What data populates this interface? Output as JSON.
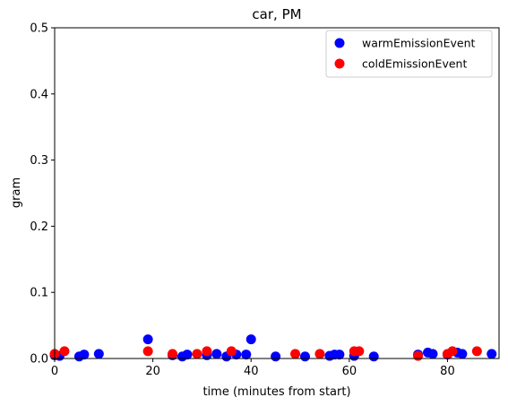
{
  "chart_data": {
    "type": "scatter",
    "title": "car, PM",
    "xlabel": "time (minutes from start)",
    "ylabel": "gram",
    "xlim": [
      0,
      90.5
    ],
    "ylim": [
      0,
      0.5
    ],
    "x_ticks": [
      0,
      20,
      40,
      60,
      80
    ],
    "y_ticks": [
      0.0,
      0.1,
      0.2,
      0.3,
      0.4,
      0.5
    ],
    "x_tick_labels": [
      "0",
      "20",
      "40",
      "60",
      "80"
    ],
    "y_tick_labels": [
      "0.0",
      "0.1",
      "0.2",
      "0.3",
      "0.4",
      "0.5"
    ],
    "grid": false,
    "legend_position": "top-right",
    "series": [
      {
        "name": "warmEmissionEvent",
        "color": "#0000ff",
        "points": [
          [
            0,
            0.005
          ],
          [
            1,
            0.004
          ],
          [
            5,
            0.003
          ],
          [
            6,
            0.006
          ],
          [
            9,
            0.007
          ],
          [
            19,
            0.029
          ],
          [
            24,
            0.005
          ],
          [
            26,
            0.003
          ],
          [
            27,
            0.006
          ],
          [
            31,
            0.005
          ],
          [
            33,
            0.007
          ],
          [
            35,
            0.003
          ],
          [
            37,
            0.006
          ],
          [
            39,
            0.006
          ],
          [
            40,
            0.029
          ],
          [
            45,
            0.003
          ],
          [
            51,
            0.003
          ],
          [
            56,
            0.004
          ],
          [
            57,
            0.006
          ],
          [
            58,
            0.006
          ],
          [
            61,
            0.004
          ],
          [
            65,
            0.003
          ],
          [
            74,
            0.006
          ],
          [
            76,
            0.009
          ],
          [
            77,
            0.007
          ],
          [
            80,
            0.006
          ],
          [
            82,
            0.009
          ],
          [
            83,
            0.007
          ],
          [
            89,
            0.007
          ]
        ]
      },
      {
        "name": "coldEmissionEvent",
        "color": "#ff0000",
        "points": [
          [
            0,
            0.007
          ],
          [
            2,
            0.011
          ],
          [
            19,
            0.011
          ],
          [
            24,
            0.007
          ],
          [
            29,
            0.007
          ],
          [
            31,
            0.011
          ],
          [
            36,
            0.011
          ],
          [
            49,
            0.007
          ],
          [
            54,
            0.007
          ],
          [
            61,
            0.011
          ],
          [
            62,
            0.011
          ],
          [
            74,
            0.004
          ],
          [
            80,
            0.007
          ],
          [
            81,
            0.011
          ],
          [
            86,
            0.011
          ]
        ]
      }
    ]
  }
}
